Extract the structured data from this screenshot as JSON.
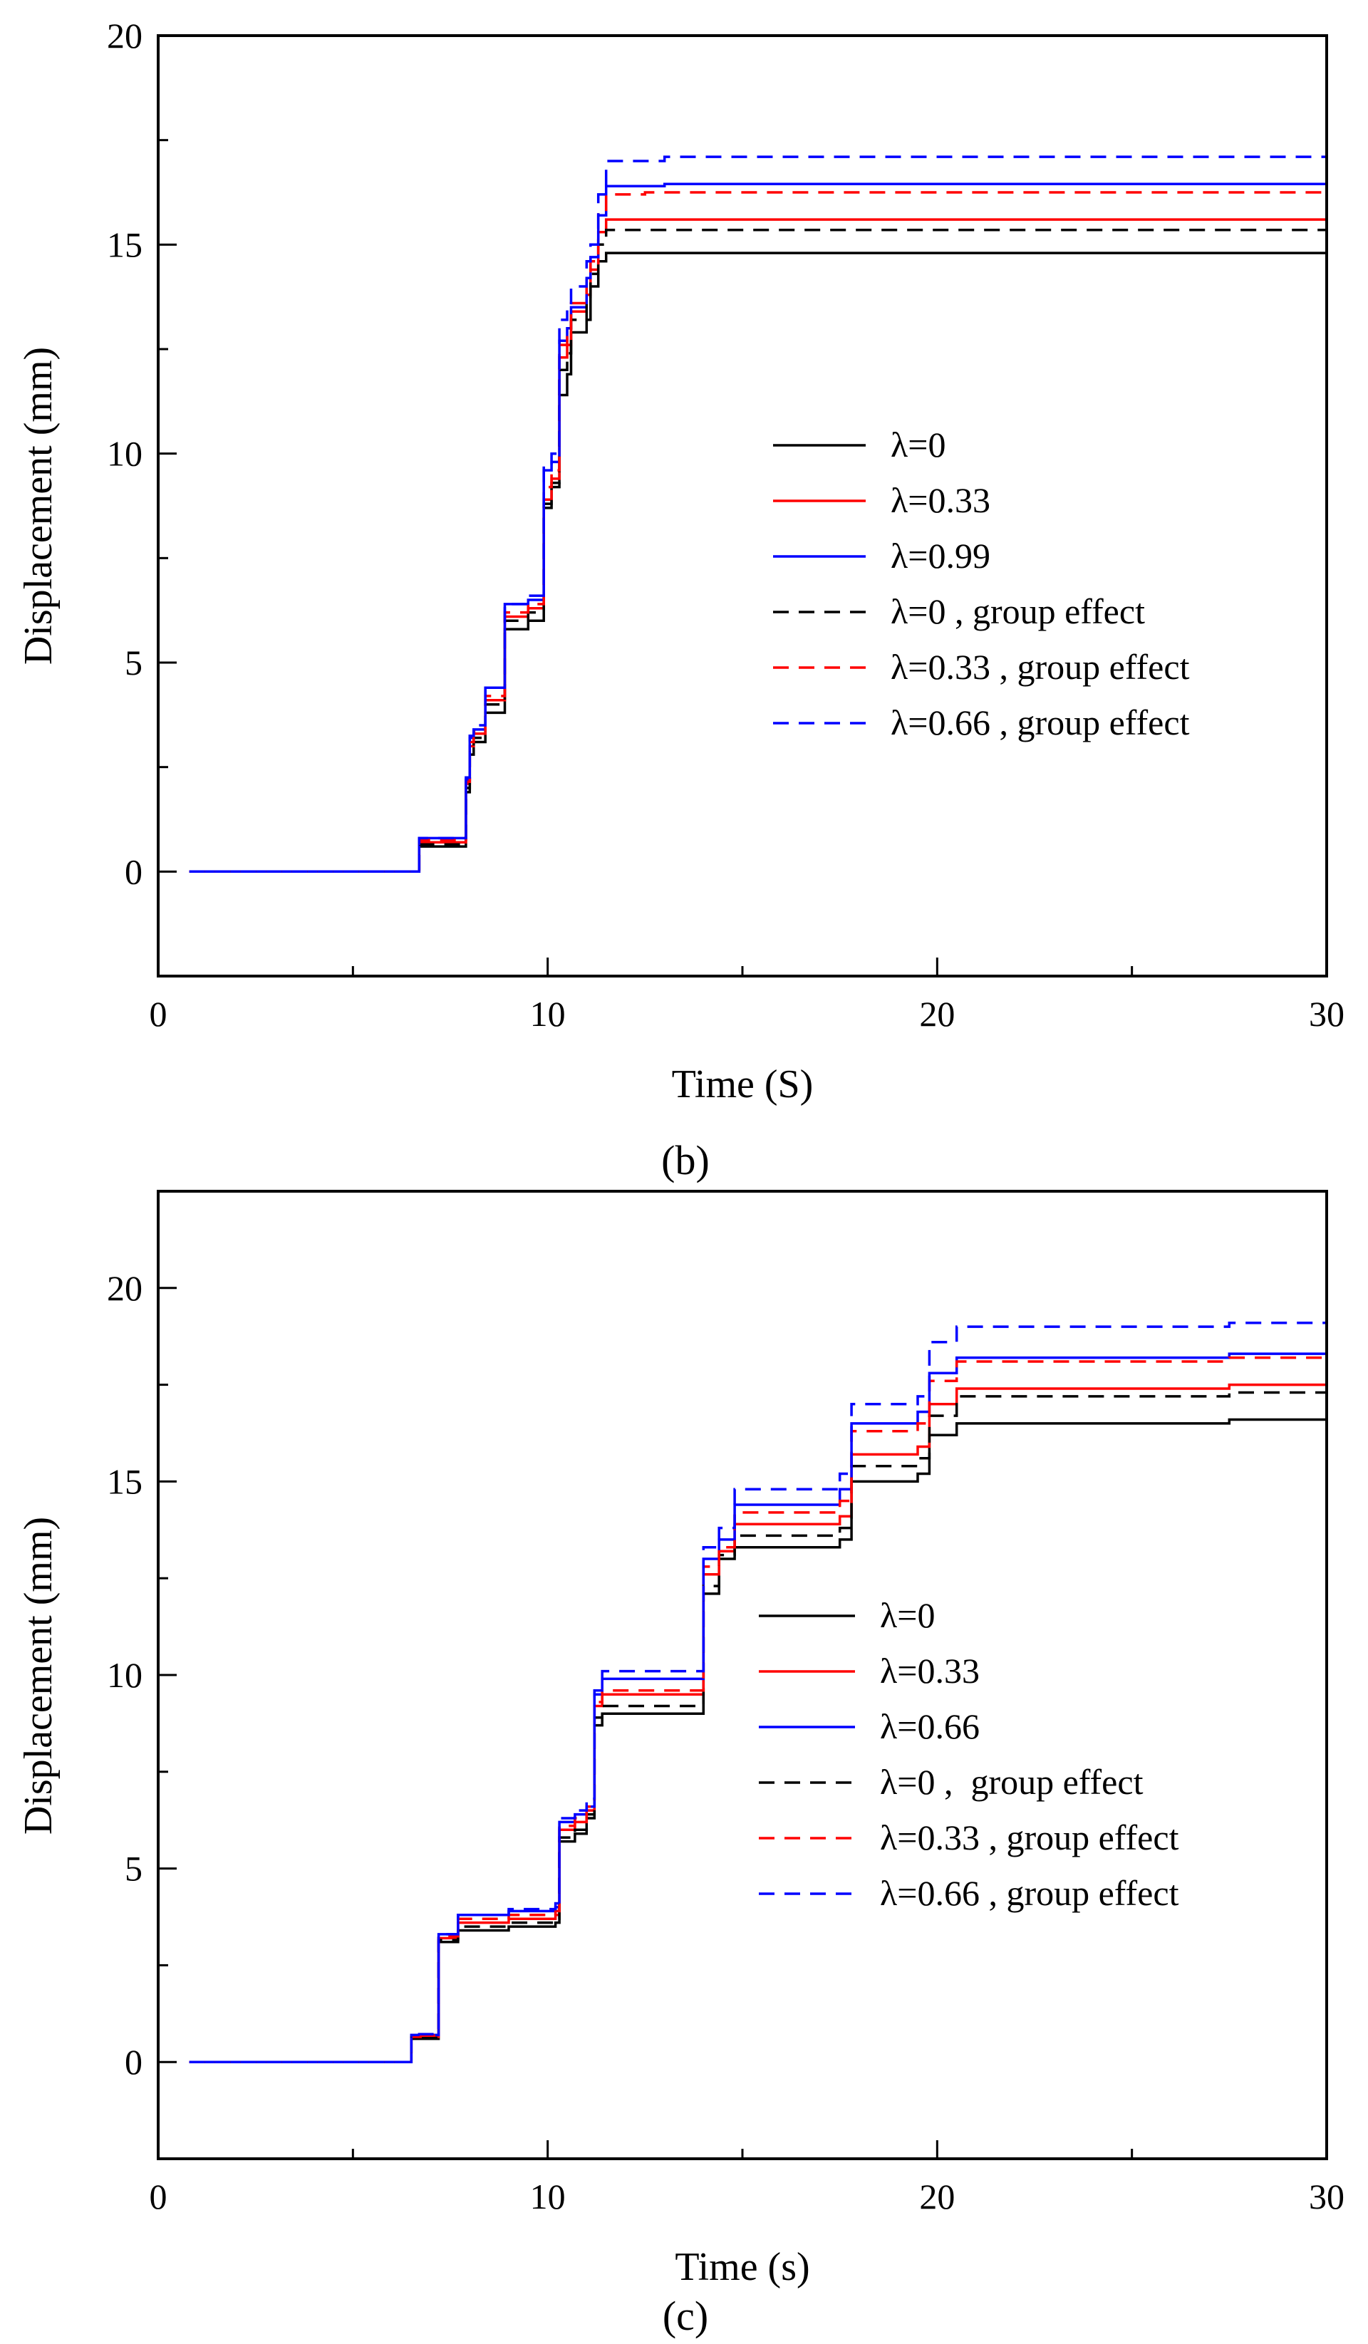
{
  "chart_data": [
    {
      "type": "line",
      "panel_label": "(b)",
      "xlabel": "Time (S)",
      "ylabel": "Displacement (mm)",
      "xlim": [
        0,
        30
      ],
      "ylim": [
        -2.5,
        20
      ],
      "xticks": [
        "0",
        "10",
        "20",
        "30"
      ],
      "yticks": [
        "0",
        "5",
        "10",
        "15",
        "20"
      ],
      "legend_position": "center-right",
      "grid": false,
      "series": [
        {
          "name": "λ=0",
          "color": "#000000",
          "dash": "solid",
          "x": [
            0.8,
            6.6,
            6.7,
            7.8,
            7.9,
            8.0,
            8.1,
            8.4,
            8.9,
            9.5,
            9.9,
            10.1,
            10.3,
            10.5,
            10.6,
            11.0,
            11.1,
            11.3,
            11.5,
            30
          ],
          "y": [
            0,
            0,
            0.6,
            0.6,
            1.9,
            2.8,
            3.1,
            3.8,
            5.8,
            6.0,
            8.7,
            9.2,
            11.4,
            11.9,
            12.9,
            13.2,
            14.0,
            14.6,
            14.8,
            14.8
          ]
        },
        {
          "name": "λ=0.33",
          "color": "#ff0000",
          "dash": "solid",
          "x": [
            0.8,
            6.6,
            6.7,
            7.8,
            7.9,
            8.0,
            8.1,
            8.4,
            8.9,
            9.5,
            9.9,
            10.1,
            10.3,
            10.5,
            10.6,
            11.0,
            11.1,
            11.3,
            11.5,
            30
          ],
          "y": [
            0,
            0,
            0.7,
            0.7,
            2.1,
            3.0,
            3.3,
            4.1,
            6.1,
            6.3,
            8.9,
            9.4,
            12.3,
            12.6,
            13.4,
            13.8,
            14.4,
            15.3,
            15.6,
            15.6
          ]
        },
        {
          "name": "λ=0.99",
          "color": "#0000ff",
          "dash": "solid",
          "x": [
            0.8,
            6.6,
            6.7,
            7.8,
            7.9,
            8.0,
            8.1,
            8.4,
            8.9,
            9.5,
            9.9,
            10.1,
            10.3,
            10.5,
            10.6,
            11.0,
            11.1,
            11.3,
            11.5,
            13.0,
            30
          ],
          "y": [
            0,
            0,
            0.8,
            0.8,
            2.2,
            3.2,
            3.4,
            4.4,
            6.4,
            6.5,
            9.6,
            9.8,
            12.7,
            13.0,
            13.5,
            14.2,
            14.7,
            15.7,
            16.4,
            16.45,
            16.45
          ]
        },
        {
          "name": "λ=0 , group effect",
          "color": "#000000",
          "dash": "dashed",
          "x": [
            0.8,
            6.6,
            6.7,
            7.8,
            7.9,
            8.0,
            8.1,
            8.4,
            8.9,
            9.5,
            9.9,
            10.1,
            10.3,
            10.5,
            10.6,
            11.0,
            11.1,
            11.3,
            11.5,
            30
          ],
          "y": [
            0,
            0,
            0.65,
            0.65,
            2.0,
            2.9,
            3.2,
            4.0,
            6.0,
            6.2,
            8.8,
            9.3,
            12.0,
            12.4,
            13.2,
            13.6,
            14.3,
            15.0,
            15.35,
            15.35
          ]
        },
        {
          "name": "λ=0.33 , group effect",
          "color": "#ff0000",
          "dash": "dashed",
          "x": [
            0.8,
            6.6,
            6.7,
            7.8,
            7.9,
            8.0,
            8.1,
            8.4,
            8.9,
            9.5,
            9.9,
            10.1,
            10.3,
            10.5,
            10.6,
            11.0,
            11.1,
            11.3,
            11.5,
            12.5,
            30
          ],
          "y": [
            0,
            0,
            0.75,
            0.75,
            2.15,
            3.1,
            3.35,
            4.2,
            6.2,
            6.4,
            9.2,
            9.6,
            12.6,
            12.9,
            13.6,
            14.2,
            14.6,
            15.8,
            16.2,
            16.25,
            16.25
          ]
        },
        {
          "name": "λ=0.66 , group effect",
          "color": "#0000ff",
          "dash": "dashed",
          "x": [
            0.8,
            6.6,
            6.7,
            7.8,
            7.9,
            8.0,
            8.1,
            8.4,
            8.9,
            9.5,
            9.9,
            10.1,
            10.3,
            10.5,
            10.6,
            11.0,
            11.1,
            11.3,
            11.5,
            13.0,
            30
          ],
          "y": [
            0,
            0,
            0.8,
            0.8,
            2.25,
            3.25,
            3.5,
            4.4,
            6.4,
            6.6,
            9.7,
            10.0,
            13.2,
            13.5,
            14.0,
            14.6,
            15.0,
            16.2,
            17.0,
            17.1,
            17.1
          ]
        }
      ]
    },
    {
      "type": "line",
      "panel_label": "(c)",
      "xlabel": "Time (s)",
      "ylabel": "Displacement (mm)",
      "xlim": [
        0,
        30
      ],
      "ylim": [
        -2.5,
        22.5
      ],
      "xticks": [
        "0",
        "10",
        "20",
        "30"
      ],
      "yticks": [
        "0",
        "5",
        "10",
        "15",
        "20"
      ],
      "legend_position": "center-right",
      "grid": false,
      "series": [
        {
          "name": "λ=0",
          "color": "#000000",
          "dash": "solid",
          "x": [
            0.8,
            6.3,
            6.5,
            7.1,
            7.2,
            7.7,
            9.0,
            10.2,
            10.3,
            10.7,
            11.0,
            11.2,
            11.4,
            13.9,
            14.0,
            14.4,
            14.8,
            17.5,
            17.8,
            19.5,
            19.8,
            20.5,
            27.5,
            30
          ],
          "y": [
            0,
            0,
            0.6,
            0.6,
            3.1,
            3.4,
            3.5,
            3.6,
            5.7,
            5.9,
            6.3,
            8.7,
            9.0,
            9.0,
            12.1,
            13.0,
            13.3,
            13.5,
            15.0,
            15.2,
            16.2,
            16.5,
            16.6,
            16.6
          ]
        },
        {
          "name": "λ=0.33",
          "color": "#ff0000",
          "dash": "solid",
          "x": [
            0.8,
            6.3,
            6.5,
            7.1,
            7.2,
            7.7,
            9.0,
            10.2,
            10.3,
            10.7,
            11.0,
            11.2,
            11.4,
            13.9,
            14.0,
            14.4,
            14.8,
            17.5,
            17.8,
            19.5,
            19.8,
            20.5,
            27.5,
            30
          ],
          "y": [
            0,
            0,
            0.65,
            0.65,
            3.2,
            3.6,
            3.7,
            3.8,
            6.0,
            6.2,
            6.5,
            9.2,
            9.5,
            9.5,
            12.6,
            13.2,
            13.9,
            14.1,
            15.7,
            15.9,
            17.0,
            17.4,
            17.5,
            17.55
          ]
        },
        {
          "name": "λ=0.66",
          "color": "#0000ff",
          "dash": "solid",
          "x": [
            0.8,
            6.3,
            6.5,
            7.1,
            7.2,
            7.7,
            9.0,
            10.2,
            10.3,
            10.7,
            11.0,
            11.2,
            11.4,
            13.9,
            14.0,
            14.4,
            14.8,
            17.5,
            17.8,
            19.5,
            19.8,
            20.5,
            27.5,
            30
          ],
          "y": [
            0,
            0,
            0.7,
            0.7,
            3.3,
            3.8,
            3.9,
            4.0,
            6.2,
            6.4,
            6.6,
            9.5,
            9.9,
            9.9,
            13.0,
            13.5,
            14.4,
            14.8,
            16.5,
            16.8,
            17.8,
            18.2,
            18.3,
            18.45
          ]
        },
        {
          "name": "λ=0 ,  group effect",
          "color": "#000000",
          "dash": "dashed",
          "x": [
            0.8,
            6.3,
            6.5,
            7.1,
            7.2,
            7.7,
            9.0,
            10.2,
            10.3,
            10.7,
            11.0,
            11.2,
            11.4,
            13.9,
            14.0,
            14.4,
            14.8,
            17.5,
            17.8,
            19.5,
            19.8,
            20.5,
            27.5,
            30
          ],
          "y": [
            0,
            0,
            0.62,
            0.62,
            3.15,
            3.5,
            3.6,
            3.7,
            5.8,
            6.0,
            6.4,
            8.9,
            9.2,
            9.2,
            12.3,
            13.1,
            13.6,
            13.8,
            15.4,
            15.6,
            16.7,
            17.2,
            17.3,
            17.4
          ]
        },
        {
          "name": "λ=0.33 , group effect",
          "color": "#ff0000",
          "dash": "dashed",
          "x": [
            0.8,
            6.3,
            6.5,
            7.1,
            7.2,
            7.7,
            9.0,
            10.2,
            10.3,
            10.7,
            11.0,
            11.2,
            11.4,
            13.9,
            14.0,
            14.4,
            14.8,
            17.5,
            17.8,
            19.5,
            19.8,
            20.5,
            27.5,
            30
          ],
          "y": [
            0,
            0,
            0.68,
            0.68,
            3.25,
            3.7,
            3.8,
            3.9,
            6.1,
            6.3,
            6.6,
            9.3,
            9.6,
            9.6,
            12.8,
            13.3,
            14.2,
            14.5,
            16.3,
            16.5,
            17.6,
            18.1,
            18.2,
            18.35
          ]
        },
        {
          "name": "λ=0.66 , group effect",
          "color": "#0000ff",
          "dash": "dashed",
          "x": [
            0.8,
            6.3,
            6.5,
            7.1,
            7.2,
            7.7,
            9.0,
            10.2,
            10.3,
            10.7,
            11.0,
            11.2,
            11.4,
            13.9,
            14.0,
            14.4,
            14.8,
            17.5,
            17.8,
            19.5,
            19.8,
            20.5,
            27.5,
            30
          ],
          "y": [
            0,
            0,
            0.72,
            0.72,
            3.3,
            3.8,
            3.95,
            4.1,
            6.3,
            6.5,
            6.8,
            9.6,
            10.1,
            10.1,
            13.3,
            13.8,
            14.8,
            15.2,
            17.0,
            17.2,
            18.6,
            19.0,
            19.1,
            19.35
          ]
        }
      ]
    }
  ]
}
